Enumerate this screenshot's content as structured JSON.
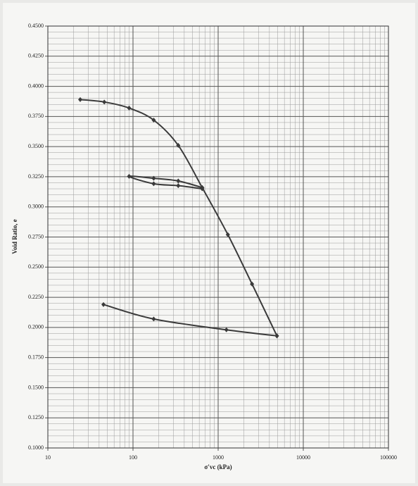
{
  "chart_data": {
    "type": "line",
    "x_label": "σ'vc (kPa)",
    "y_label": "Void Ratio, e",
    "x_log": true,
    "grid": true,
    "minor_grid": true,
    "xlim": [
      10,
      100000
    ],
    "xticks": [
      10,
      100,
      1000,
      10000,
      100000
    ],
    "ylim": [
      0.1,
      0.45
    ],
    "yticks": [
      {
        "value": 0.1,
        "label": "0.1000"
      },
      {
        "value": 0.125,
        "label": "0.1250"
      },
      {
        "value": 0.15,
        "label": "0.1500"
      },
      {
        "value": 0.175,
        "label": "0.1750"
      },
      {
        "value": 0.2,
        "label": "0.2000"
      },
      {
        "value": 0.225,
        "label": "0.2250"
      },
      {
        "value": 0.25,
        "label": "0.2500"
      },
      {
        "value": 0.275,
        "label": "0.2750"
      },
      {
        "value": 0.3,
        "label": "0.3000"
      },
      {
        "value": 0.325,
        "label": "0.3250"
      },
      {
        "value": 0.35,
        "label": "0.3500"
      },
      {
        "value": 0.375,
        "label": "0.3750"
      },
      {
        "value": 0.4,
        "label": "0.4000"
      },
      {
        "value": 0.425,
        "label": "0.4250"
      },
      {
        "value": 0.45,
        "label": "0.4500"
      }
    ],
    "series": [
      {
        "color": "#3a3a3a",
        "x": [
          24,
          46,
          90,
          175,
          340,
          650,
          1300,
          2500,
          4900
        ],
        "values": [
          0.389,
          0.387,
          0.382,
          0.372,
          0.351,
          0.316,
          0.277,
          0.236,
          0.193
        ]
      },
      {
        "color": "#3a3a3a",
        "x": [
          650,
          340,
          175,
          90,
          175,
          340,
          650
        ],
        "values": [
          0.316,
          0.3215,
          0.3237,
          0.3253,
          0.3192,
          0.3176,
          0.315
        ]
      },
      {
        "color": "#3a3a3a",
        "x": [
          4900,
          1250,
          175,
          45
        ],
        "values": [
          0.193,
          0.198,
          0.207,
          0.219
        ]
      }
    ]
  }
}
